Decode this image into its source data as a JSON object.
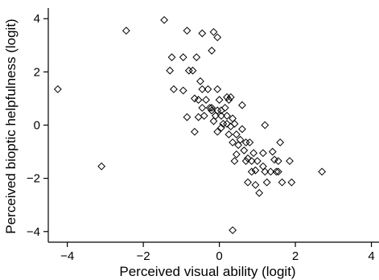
{
  "chart_data": {
    "type": "scatter",
    "title": "",
    "xlabel": "Perceived visual ability (logit)",
    "ylabel": "Perceived bioptic helpfulness (logit)",
    "xlim": [
      -4.5,
      4.2
    ],
    "ylim": [
      -4.4,
      4.4
    ],
    "xticks": [
      -4,
      -2,
      0,
      2,
      4
    ],
    "yticks": [
      -4,
      -2,
      0,
      2,
      4
    ],
    "xtick_labels": [
      "−4",
      "−2",
      "0",
      "2",
      "4"
    ],
    "ytick_labels": [
      "−4",
      "−2",
      "0",
      "2",
      "4"
    ],
    "grid": false,
    "legend": "none",
    "marker": "diamond-open",
    "marker_color": "#000000",
    "series": [
      {
        "points": [
          [
            -4.25,
            1.35
          ],
          [
            -3.1,
            -1.55
          ],
          [
            -2.45,
            3.55
          ],
          [
            -1.45,
            3.95
          ],
          [
            -1.25,
            2.55
          ],
          [
            -1.3,
            2.05
          ],
          [
            -1.2,
            1.35
          ],
          [
            -0.95,
            1.3
          ],
          [
            -0.95,
            2.55
          ],
          [
            -0.85,
            3.55
          ],
          [
            -0.8,
            2.05
          ],
          [
            -0.7,
            2.05
          ],
          [
            -0.6,
            2.55
          ],
          [
            -0.65,
            1.0
          ],
          [
            -0.55,
            0.95
          ],
          [
            -0.45,
            1.35
          ],
          [
            -0.45,
            3.45
          ],
          [
            -0.5,
            1.65
          ],
          [
            -0.45,
            0.65
          ],
          [
            -0.4,
            0.35
          ],
          [
            -0.55,
            0.3
          ],
          [
            -0.85,
            0.3
          ],
          [
            -0.65,
            -0.25
          ],
          [
            -0.35,
            0.95
          ],
          [
            -0.3,
            1.35
          ],
          [
            -0.25,
            0.65
          ],
          [
            -0.2,
            0.55
          ],
          [
            -0.2,
            2.8
          ],
          [
            -0.15,
            3.5
          ],
          [
            -0.05,
            3.3
          ],
          [
            -0.05,
            1.35
          ],
          [
            0.0,
            0.95
          ],
          [
            -0.05,
            0.55
          ],
          [
            -0.1,
            0.35
          ],
          [
            -0.15,
            0.15
          ],
          [
            -0.05,
            -0.25
          ],
          [
            -0.2,
            0.65
          ],
          [
            0.05,
            0.55
          ],
          [
            0.05,
            0.35
          ],
          [
            0.1,
            0.05
          ],
          [
            0.05,
            -0.1
          ],
          [
            0.15,
            0.65
          ],
          [
            0.2,
            1.05
          ],
          [
            0.25,
            0.95
          ],
          [
            0.3,
            1.05
          ],
          [
            0.2,
            0.35
          ],
          [
            0.2,
            0.05
          ],
          [
            0.3,
            -0.05
          ],
          [
            0.25,
            -0.35
          ],
          [
            0.35,
            0.25
          ],
          [
            0.4,
            0.05
          ],
          [
            0.35,
            -0.65
          ],
          [
            0.45,
            -0.35
          ],
          [
            0.5,
            -0.75
          ],
          [
            0.45,
            -1.1
          ],
          [
            0.55,
            -0.55
          ],
          [
            0.6,
            0.75
          ],
          [
            0.6,
            -0.15
          ],
          [
            0.65,
            -0.95
          ],
          [
            0.7,
            -0.65
          ],
          [
            0.7,
            -1.35
          ],
          [
            0.75,
            -1.25
          ],
          [
            0.8,
            -0.65
          ],
          [
            0.85,
            -1.35
          ],
          [
            0.9,
            -1.05
          ],
          [
            0.95,
            -1.7
          ],
          [
            0.75,
            -2.15
          ],
          [
            0.85,
            -1.75
          ],
          [
            0.95,
            -2.25
          ],
          [
            1.0,
            -1.35
          ],
          [
            1.05,
            -2.55
          ],
          [
            1.15,
            -1.05
          ],
          [
            1.15,
            -1.55
          ],
          [
            1.2,
            -1.75
          ],
          [
            1.25,
            -2.15
          ],
          [
            1.2,
            0.0
          ],
          [
            1.35,
            -1.75
          ],
          [
            1.4,
            -1.0
          ],
          [
            1.45,
            -1.3
          ],
          [
            1.5,
            -1.75
          ],
          [
            1.55,
            -1.35
          ],
          [
            1.6,
            -0.65
          ],
          [
            1.65,
            -2.15
          ],
          [
            1.85,
            -1.35
          ],
          [
            1.9,
            -2.15
          ],
          [
            2.7,
            -1.75
          ],
          [
            0.35,
            -3.95
          ],
          [
            0.4,
            -1.35
          ],
          [
            1.55,
            -1.75
          ]
        ]
      }
    ]
  }
}
